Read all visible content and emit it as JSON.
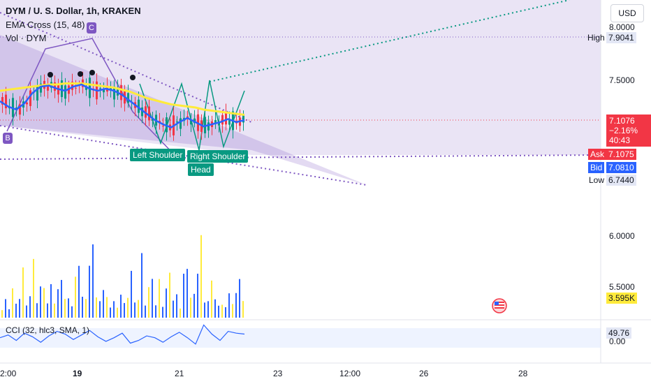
{
  "header": {
    "symbol": "DYM / U. S. Dollar, 1h, KRAKEN",
    "ema": "EMA Cross (15, 48)",
    "vol": "Vol · DYM",
    "currency": "USD"
  },
  "price_axis": {
    "ticks": [
      "8.0000",
      "7.5000",
      "6.0000",
      "5.5000"
    ],
    "high_label": "High",
    "high_value": "7.9041",
    "low_label": "Low",
    "low_value": "6.7440",
    "last_price": "7.1076",
    "change": "−2.16%",
    "countdown": "40:43",
    "ask_label": "Ask",
    "ask_value": "7.1075",
    "bid_label": "Bid",
    "bid_value": "7.0810",
    "volume_value": "3.595K",
    "cci_value": "49.76",
    "cci_extra_tick": "0.00"
  },
  "x_axis": {
    "ticks": [
      "2:00",
      "19",
      "21",
      "23",
      "12:00",
      "26",
      "28"
    ]
  },
  "patterns": {
    "left_shoulder": "Left Shoulder",
    "right_shoulder": "Right Shoulder",
    "head": "Head",
    "point_b": "B",
    "point_c": "C"
  },
  "cci": {
    "label": "CCI (32, hlc3, SMA, 1)"
  },
  "colors": {
    "up": "#089981",
    "down": "#f23645",
    "ema_fast": "#2962ff",
    "ema_slow": "#ffeb3b",
    "pattern": "#7e57c2",
    "vol_blue": "#2962ff",
    "vol_yellow": "#ffeb3b"
  },
  "chart_data": {
    "type": "candlestick",
    "title": "DYM / U. S. Dollar, 1h, KRAKEN",
    "price_range": [
      6.744,
      7.9041
    ],
    "last_price": 7.1076,
    "ema_fast": [
      7.3,
      7.25,
      7.22,
      7.28,
      7.38,
      7.44,
      7.45,
      7.42,
      7.4,
      7.44,
      7.46,
      7.42,
      7.4,
      7.42,
      7.4,
      7.36,
      7.3,
      7.24,
      7.18,
      7.12,
      7.08,
      7.05,
      7.1,
      7.14,
      7.1,
      7.06,
      7.08,
      7.1,
      7.13,
      7.1,
      7.12
    ],
    "ema_slow": [
      7.4,
      7.41,
      7.42,
      7.43,
      7.44,
      7.45,
      7.46,
      7.46,
      7.47,
      7.47,
      7.47,
      7.46,
      7.45,
      7.44,
      7.43,
      7.41,
      7.39,
      7.36,
      7.33,
      7.31,
      7.29,
      7.27,
      7.26,
      7.25,
      7.24,
      7.22,
      7.21,
      7.2,
      7.19,
      7.18,
      7.17
    ],
    "volume_values": [
      0.6,
      0.9,
      0.5,
      1.6,
      0.7,
      1.3,
      2.4,
      0.8,
      1.1,
      3.1,
      0.9,
      1.5,
      2.2,
      0.7,
      1.9,
      0.8,
      1.4,
      2.8,
      0.9,
      1.2,
      0.6,
      2.1,
      3.4,
      1.0,
      1.3,
      2.6,
      4.0,
      1.2,
      0.8,
      2.2,
      1.0
    ],
    "cci_values": [
      10,
      40,
      -20,
      60,
      20,
      -40,
      30,
      80,
      50,
      -10,
      40,
      90,
      20,
      -30,
      10,
      60,
      -50,
      -20,
      30,
      10,
      -40,
      20,
      70,
      10,
      -60,
      150,
      50,
      -20,
      80,
      60,
      49.76
    ]
  }
}
